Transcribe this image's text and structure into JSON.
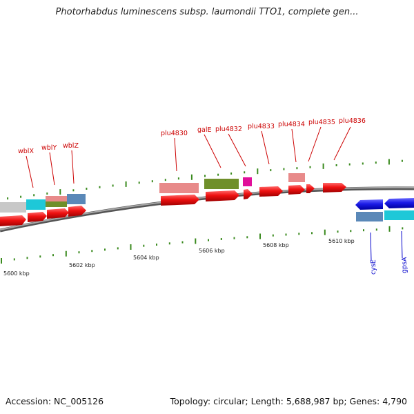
{
  "header": {
    "title": "Photorhabdus luminescens subsp. laumondii TTO1, complete gen..."
  },
  "footer": {
    "accession": "Accession: NC_005126",
    "summary": "Topology: circular; Length: 5,688,987 bp; Genes: 4,790"
  },
  "scale": {
    "labels": [
      {
        "kbp": 5600,
        "text": "5600 kbp"
      },
      {
        "kbp": 5602,
        "text": "5602 kbp"
      },
      {
        "kbp": 5604,
        "text": "5604 kbp"
      },
      {
        "kbp": 5606,
        "text": "5606 kbp"
      },
      {
        "kbp": 5608,
        "text": "5608 kbp"
      },
      {
        "kbp": 5610,
        "text": "5610 kbp"
      }
    ]
  },
  "genes_forward": [
    {
      "name": "wblX"
    },
    {
      "name": "wblY"
    },
    {
      "name": "wblZ"
    },
    {
      "name": "plu4830"
    },
    {
      "name": "galE"
    },
    {
      "name": "plu4832"
    },
    {
      "name": "plu4833"
    },
    {
      "name": "plu4834"
    },
    {
      "name": "plu4835"
    },
    {
      "name": "plu4836"
    }
  ],
  "genes_reverse": [
    {
      "name": "cysE"
    },
    {
      "name": "gpsA"
    }
  ],
  "colors": {
    "forward_gene": "#ee1111",
    "reverse_gene": "#1a1ae6",
    "forward_label": "#cc0000",
    "reverse_label": "#0000cc",
    "tick": "#3a8a1e",
    "backbone": "#808080",
    "cds_pink": "#e88a8a",
    "cds_olive": "#6f8f2a",
    "cds_magenta": "#e0109a",
    "cds_cyan": "#1ec8d8",
    "cds_steelblue": "#5a88b8",
    "cds_grey": "#c8c8c8"
  }
}
